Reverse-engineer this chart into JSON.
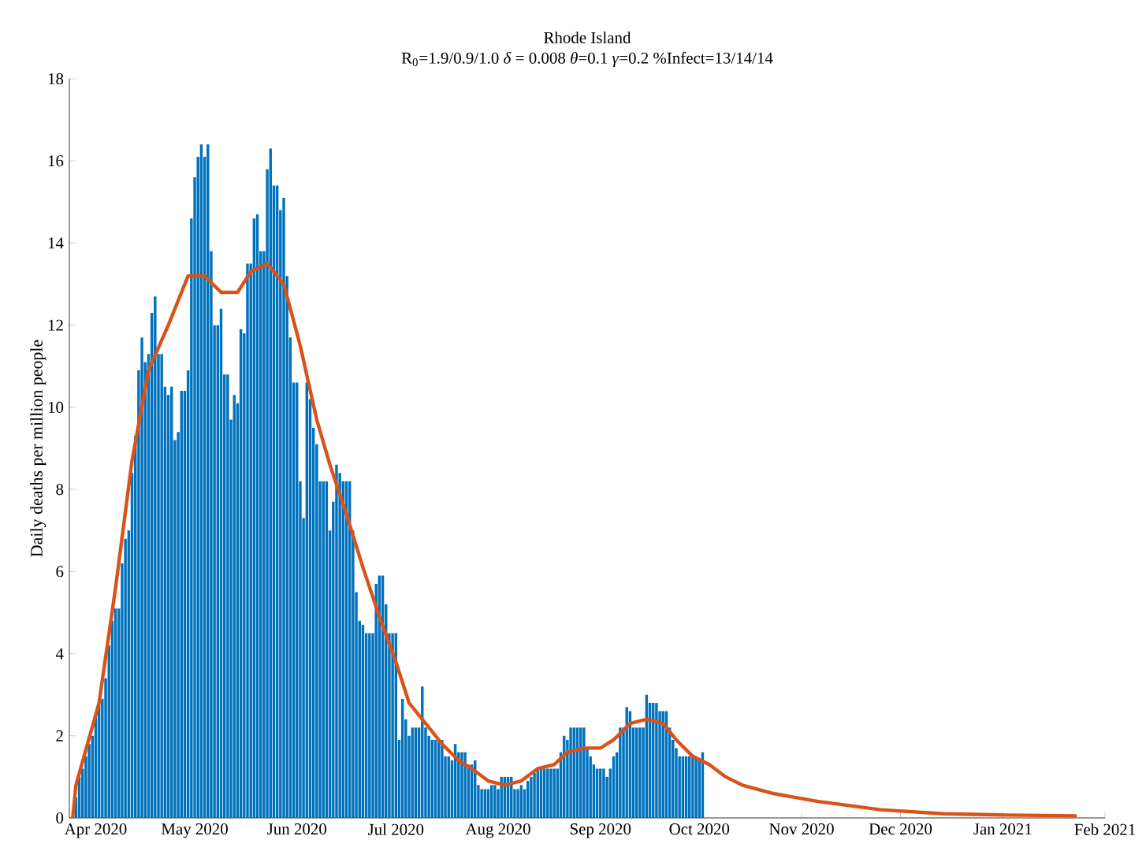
{
  "chart_data": {
    "type": "bar",
    "title": "Rhode Island",
    "subtitle": "R$_{0}$=1.9/0.9/1.0  *δ* = 0.008  *θ*=0.1  *γ*=0.2  %Infect=13/14/14",
    "ylabel": "Daily deaths per million people",
    "xlim": [
      "2020-03-24",
      "2021-02-01"
    ],
    "ylim": [
      0,
      18
    ],
    "xticks": [
      {
        "value": "2020-04-01",
        "label": "Apr 2020"
      },
      {
        "value": "2020-05-01",
        "label": "May 2020"
      },
      {
        "value": "2020-06-01",
        "label": "Jun 2020"
      },
      {
        "value": "2020-07-01",
        "label": "Jul 2020"
      },
      {
        "value": "2020-08-01",
        "label": "Aug 2020"
      },
      {
        "value": "2020-09-01",
        "label": "Sep 2020"
      },
      {
        "value": "2020-10-01",
        "label": "Oct 2020"
      },
      {
        "value": "2020-11-01",
        "label": "Nov 2020"
      },
      {
        "value": "2020-12-01",
        "label": "Dec 2020"
      },
      {
        "value": "2021-01-01",
        "label": "Jan 2021"
      },
      {
        "value": "2021-02-01",
        "label": "Feb 2021"
      }
    ],
    "yticks": [
      0,
      2,
      4,
      6,
      8,
      10,
      12,
      14,
      16,
      18
    ],
    "series": [
      {
        "color": "#0072bd",
        "x": [
          "2020-03-26",
          "2020-03-27",
          "2020-03-28",
          "2020-03-29",
          "2020-03-30",
          "2020-03-31",
          "2020-04-01",
          "2020-04-02",
          "2020-04-03",
          "2020-04-04",
          "2020-04-05",
          "2020-04-06",
          "2020-04-07",
          "2020-04-08",
          "2020-04-09",
          "2020-04-10",
          "2020-04-11",
          "2020-04-12",
          "2020-04-13",
          "2020-04-14",
          "2020-04-15",
          "2020-04-16",
          "2020-04-17",
          "2020-04-18",
          "2020-04-19",
          "2020-04-20",
          "2020-04-21",
          "2020-04-22",
          "2020-04-23",
          "2020-04-24",
          "2020-04-25",
          "2020-04-26",
          "2020-04-27",
          "2020-04-28",
          "2020-04-29",
          "2020-04-30",
          "2020-05-01",
          "2020-05-02",
          "2020-05-03",
          "2020-05-04",
          "2020-05-05",
          "2020-05-06",
          "2020-05-07",
          "2020-05-08",
          "2020-05-09",
          "2020-05-10",
          "2020-05-11",
          "2020-05-12",
          "2020-05-13",
          "2020-05-14",
          "2020-05-15",
          "2020-05-16",
          "2020-05-17",
          "2020-05-18",
          "2020-05-19",
          "2020-05-20",
          "2020-05-21",
          "2020-05-22",
          "2020-05-23",
          "2020-05-24",
          "2020-05-25",
          "2020-05-26",
          "2020-05-27",
          "2020-05-28",
          "2020-05-29",
          "2020-05-30",
          "2020-05-31",
          "2020-06-01",
          "2020-06-02",
          "2020-06-03",
          "2020-06-04",
          "2020-06-05",
          "2020-06-06",
          "2020-06-07",
          "2020-06-08",
          "2020-06-09",
          "2020-06-10",
          "2020-06-11",
          "2020-06-12",
          "2020-06-13",
          "2020-06-14",
          "2020-06-15",
          "2020-06-16",
          "2020-06-17",
          "2020-06-18",
          "2020-06-19",
          "2020-06-20",
          "2020-06-21",
          "2020-06-22",
          "2020-06-23",
          "2020-06-24",
          "2020-06-25",
          "2020-06-26",
          "2020-06-27",
          "2020-06-28",
          "2020-06-29",
          "2020-06-30",
          "2020-07-01",
          "2020-07-02",
          "2020-07-03",
          "2020-07-04",
          "2020-07-05",
          "2020-07-06",
          "2020-07-07",
          "2020-07-08",
          "2020-07-09",
          "2020-07-10",
          "2020-07-11",
          "2020-07-12",
          "2020-07-13",
          "2020-07-14",
          "2020-07-15",
          "2020-07-16",
          "2020-07-17",
          "2020-07-18",
          "2020-07-19",
          "2020-07-20",
          "2020-07-21",
          "2020-07-22",
          "2020-07-23",
          "2020-07-24",
          "2020-07-25",
          "2020-07-26",
          "2020-07-27",
          "2020-07-28",
          "2020-07-29",
          "2020-07-30",
          "2020-07-31",
          "2020-08-01",
          "2020-08-02",
          "2020-08-03",
          "2020-08-04",
          "2020-08-05",
          "2020-08-06",
          "2020-08-07",
          "2020-08-08",
          "2020-08-09",
          "2020-08-10",
          "2020-08-11",
          "2020-08-12",
          "2020-08-13",
          "2020-08-14",
          "2020-08-15",
          "2020-08-16",
          "2020-08-17",
          "2020-08-18",
          "2020-08-19",
          "2020-08-20",
          "2020-08-21",
          "2020-08-22",
          "2020-08-23",
          "2020-08-24",
          "2020-08-25",
          "2020-08-26",
          "2020-08-27",
          "2020-08-28",
          "2020-08-29",
          "2020-08-30",
          "2020-08-31",
          "2020-09-01",
          "2020-09-02",
          "2020-09-03",
          "2020-09-04",
          "2020-09-05",
          "2020-09-06",
          "2020-09-07",
          "2020-09-08",
          "2020-09-09",
          "2020-09-10",
          "2020-09-11",
          "2020-09-12",
          "2020-09-13",
          "2020-09-14",
          "2020-09-15",
          "2020-09-16",
          "2020-09-17",
          "2020-09-18",
          "2020-09-19",
          "2020-09-20",
          "2020-09-21",
          "2020-09-22",
          "2020-09-23",
          "2020-09-24",
          "2020-09-25",
          "2020-09-26",
          "2020-09-27",
          "2020-09-28",
          "2020-09-29",
          "2020-09-30",
          "2020-10-01",
          "2020-10-02"
        ],
        "values": [
          0.5,
          1.0,
          1.2,
          1.5,
          1.8,
          2.0,
          2.5,
          2.9,
          2.9,
          3.4,
          4.2,
          4.8,
          5.1,
          5.1,
          6.2,
          6.8,
          7.0,
          8.4,
          9.3,
          10.9,
          11.7,
          11.1,
          11.3,
          12.3,
          12.7,
          11.3,
          11.3,
          10.5,
          10.3,
          10.5,
          9.2,
          9.4,
          10.4,
          10.4,
          10.9,
          14.6,
          15.6,
          16.1,
          16.4,
          16.1,
          16.4,
          13.8,
          12.0,
          12.0,
          12.4,
          10.8,
          10.8,
          9.7,
          10.3,
          10.1,
          11.9,
          11.8,
          13.5,
          13.5,
          14.6,
          14.7,
          13.8,
          13.8,
          15.8,
          16.3,
          15.4,
          15.4,
          14.8,
          15.1,
          13.2,
          11.7,
          10.6,
          10.6,
          8.2,
          7.3,
          10.6,
          10.2,
          9.5,
          9.1,
          8.2,
          8.2,
          8.2,
          7.0,
          7.7,
          8.6,
          8.4,
          8.2,
          8.2,
          8.2,
          7.0,
          5.5,
          4.8,
          4.7,
          4.5,
          4.5,
          4.5,
          5.7,
          5.9,
          5.9,
          5.2,
          4.5,
          4.5,
          4.5,
          1.9,
          2.9,
          2.4,
          2.0,
          2.2,
          2.2,
          2.2,
          3.2,
          2.2,
          2.0,
          1.9,
          1.9,
          1.9,
          1.9,
          1.5,
          1.5,
          1.4,
          1.8,
          1.6,
          1.6,
          1.6,
          1.3,
          1.3,
          1.4,
          0.8,
          0.7,
          0.7,
          0.7,
          0.8,
          0.8,
          0.7,
          1.0,
          1.0,
          1.0,
          1.0,
          0.7,
          0.7,
          0.8,
          0.7,
          0.9,
          1.0,
          1.1,
          1.2,
          1.2,
          1.2,
          1.2,
          1.2,
          1.2,
          1.2,
          1.6,
          2.0,
          1.9,
          2.2,
          2.2,
          2.2,
          2.2,
          2.2,
          1.7,
          1.5,
          1.3,
          1.2,
          1.2,
          1.2,
          1.0,
          1.2,
          1.5,
          1.6,
          2.2,
          2.2,
          2.7,
          2.6,
          2.2,
          2.2,
          2.2,
          2.2,
          3.0,
          2.8,
          2.8,
          2.8,
          2.6,
          2.6,
          2.6,
          2.2,
          1.9,
          1.7,
          1.5,
          1.5,
          1.5,
          1.5,
          1.5,
          1.5,
          1.4,
          1.6
        ]
      },
      {
        "type": "line",
        "color": "#d95319",
        "marker": "none",
        "line_style": "solid",
        "x": [
          "2020-03-25",
          "2020-03-26",
          "2020-04-02",
          "2020-04-07",
          "2020-04-12",
          "2020-04-17",
          "2020-04-23",
          "2020-04-29",
          "2020-05-04",
          "2020-05-09",
          "2020-05-14",
          "2020-05-18",
          "2020-05-23",
          "2020-05-28",
          "2020-06-02",
          "2020-06-07",
          "2020-06-11",
          "2020-06-16",
          "2020-06-21",
          "2020-06-26",
          "2020-07-01",
          "2020-07-05",
          "2020-07-10",
          "2020-07-15",
          "2020-07-20",
          "2020-07-24",
          "2020-07-29",
          "2020-08-03",
          "2020-08-08",
          "2020-08-13",
          "2020-08-18",
          "2020-08-22",
          "2020-08-27",
          "2020-09-01",
          "2020-09-05",
          "2020-09-10",
          "2020-09-15",
          "2020-09-20",
          "2020-09-24",
          "2020-09-29",
          "2020-10-04",
          "2020-10-09",
          "2020-10-14",
          "2020-10-23",
          "2020-11-06",
          "2020-11-25",
          "2020-12-14",
          "2021-01-02",
          "2021-01-23"
        ],
        "values": [
          0,
          0.8,
          2.8,
          5.6,
          8.7,
          10.9,
          12.0,
          13.2,
          13.2,
          12.8,
          12.8,
          13.3,
          13.5,
          13.0,
          11.5,
          9.7,
          8.6,
          7.4,
          6.1,
          4.9,
          3.8,
          2.8,
          2.3,
          1.8,
          1.4,
          1.2,
          0.9,
          0.8,
          0.9,
          1.2,
          1.3,
          1.6,
          1.7,
          1.7,
          1.9,
          2.3,
          2.4,
          2.3,
          1.9,
          1.5,
          1.3,
          1.0,
          0.8,
          0.6,
          0.4,
          0.2,
          0.1,
          0.07,
          0.05
        ]
      }
    ]
  }
}
